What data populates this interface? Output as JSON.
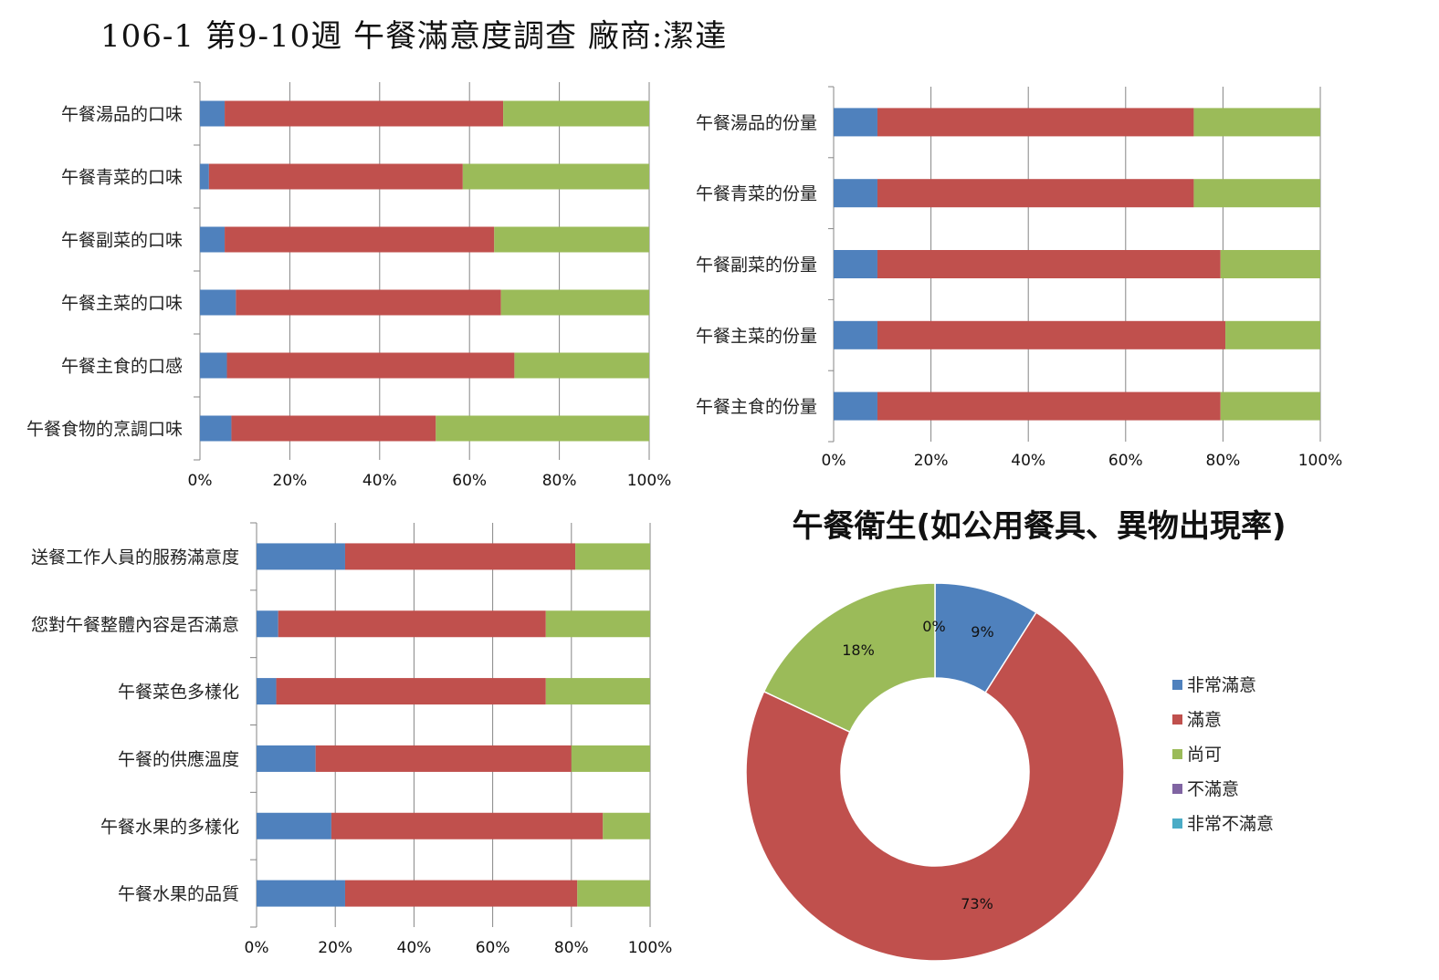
{
  "title": "106-1  第9-10週  午餐滿意度調查  廠商:潔達",
  "colors": {
    "very_satisfied": "#4f81bd",
    "satisfied": "#c0504d",
    "acceptable": "#9bbb59",
    "unsatisfied": "#8064a2",
    "very_unsatisfied": "#4bacc6",
    "grid": "#868686"
  },
  "chart_data": [
    {
      "id": "taste",
      "type": "bar",
      "orientation": "horizontal",
      "stacked": "percent",
      "categories": [
        "午餐湯品的口味",
        "午餐青菜的口味",
        "午餐副菜的口味",
        "午餐主菜的口味",
        "午餐主食的口感",
        "午餐食物的烹調口味"
      ],
      "series": [
        {
          "values": [
            5.5,
            2,
            5.5,
            8,
            6,
            7
          ]
        },
        {
          "values": [
            62,
            56.5,
            60,
            59,
            64,
            45.5
          ]
        },
        {
          "values": [
            32.5,
            41.5,
            34.5,
            33,
            30,
            47.5
          ]
        }
      ],
      "x_ticks": [
        "0%",
        "20%",
        "40%",
        "60%",
        "80%",
        "100%"
      ],
      "xlim": [
        0,
        100
      ],
      "grid": true
    },
    {
      "id": "portion",
      "type": "bar",
      "orientation": "horizontal",
      "stacked": "percent",
      "categories": [
        "午餐湯品的份量",
        "午餐青菜的份量",
        "午餐副菜的份量",
        "午餐主菜的份量",
        "午餐主食的份量"
      ],
      "series": [
        {
          "values": [
            9,
            9,
            9,
            9,
            9
          ]
        },
        {
          "values": [
            65,
            65,
            70.5,
            71.5,
            70.5
          ]
        },
        {
          "values": [
            26,
            26,
            20.5,
            19.5,
            20.5
          ]
        }
      ],
      "x_ticks": [
        "0%",
        "20%",
        "40%",
        "60%",
        "80%",
        "100%"
      ],
      "xlim": [
        0,
        100
      ],
      "grid": true
    },
    {
      "id": "service",
      "type": "bar",
      "orientation": "horizontal",
      "stacked": "percent",
      "categories": [
        "送餐工作人員的服務滿意度",
        "您對午餐整體內容是否滿意",
        "午餐菜色多樣化",
        "午餐的供應溫度",
        "午餐水果的多樣化",
        "午餐水果的品質"
      ],
      "series": [
        {
          "values": [
            22.5,
            5.5,
            5,
            15,
            19,
            22.5
          ]
        },
        {
          "values": [
            58.5,
            68,
            68.5,
            65,
            69,
            59
          ]
        },
        {
          "values": [
            19,
            26.5,
            26.5,
            20,
            12,
            18.5
          ]
        }
      ],
      "x_ticks": [
        "0%",
        "20%",
        "40%",
        "60%",
        "80%",
        "100%"
      ],
      "xlim": [
        0,
        100
      ],
      "grid": true
    },
    {
      "id": "hygiene",
      "type": "pie",
      "donut": true,
      "title": "午餐衛生(如公用餐具、異物出現率)",
      "labels": [
        "非常滿意",
        "滿意",
        "尚可",
        "不滿意",
        "非常不滿意"
      ],
      "values": [
        9,
        73,
        18,
        0,
        0
      ],
      "value_labels": [
        "9%",
        "73%",
        "18%",
        "0%",
        ""
      ],
      "legend_position": "right"
    }
  ]
}
